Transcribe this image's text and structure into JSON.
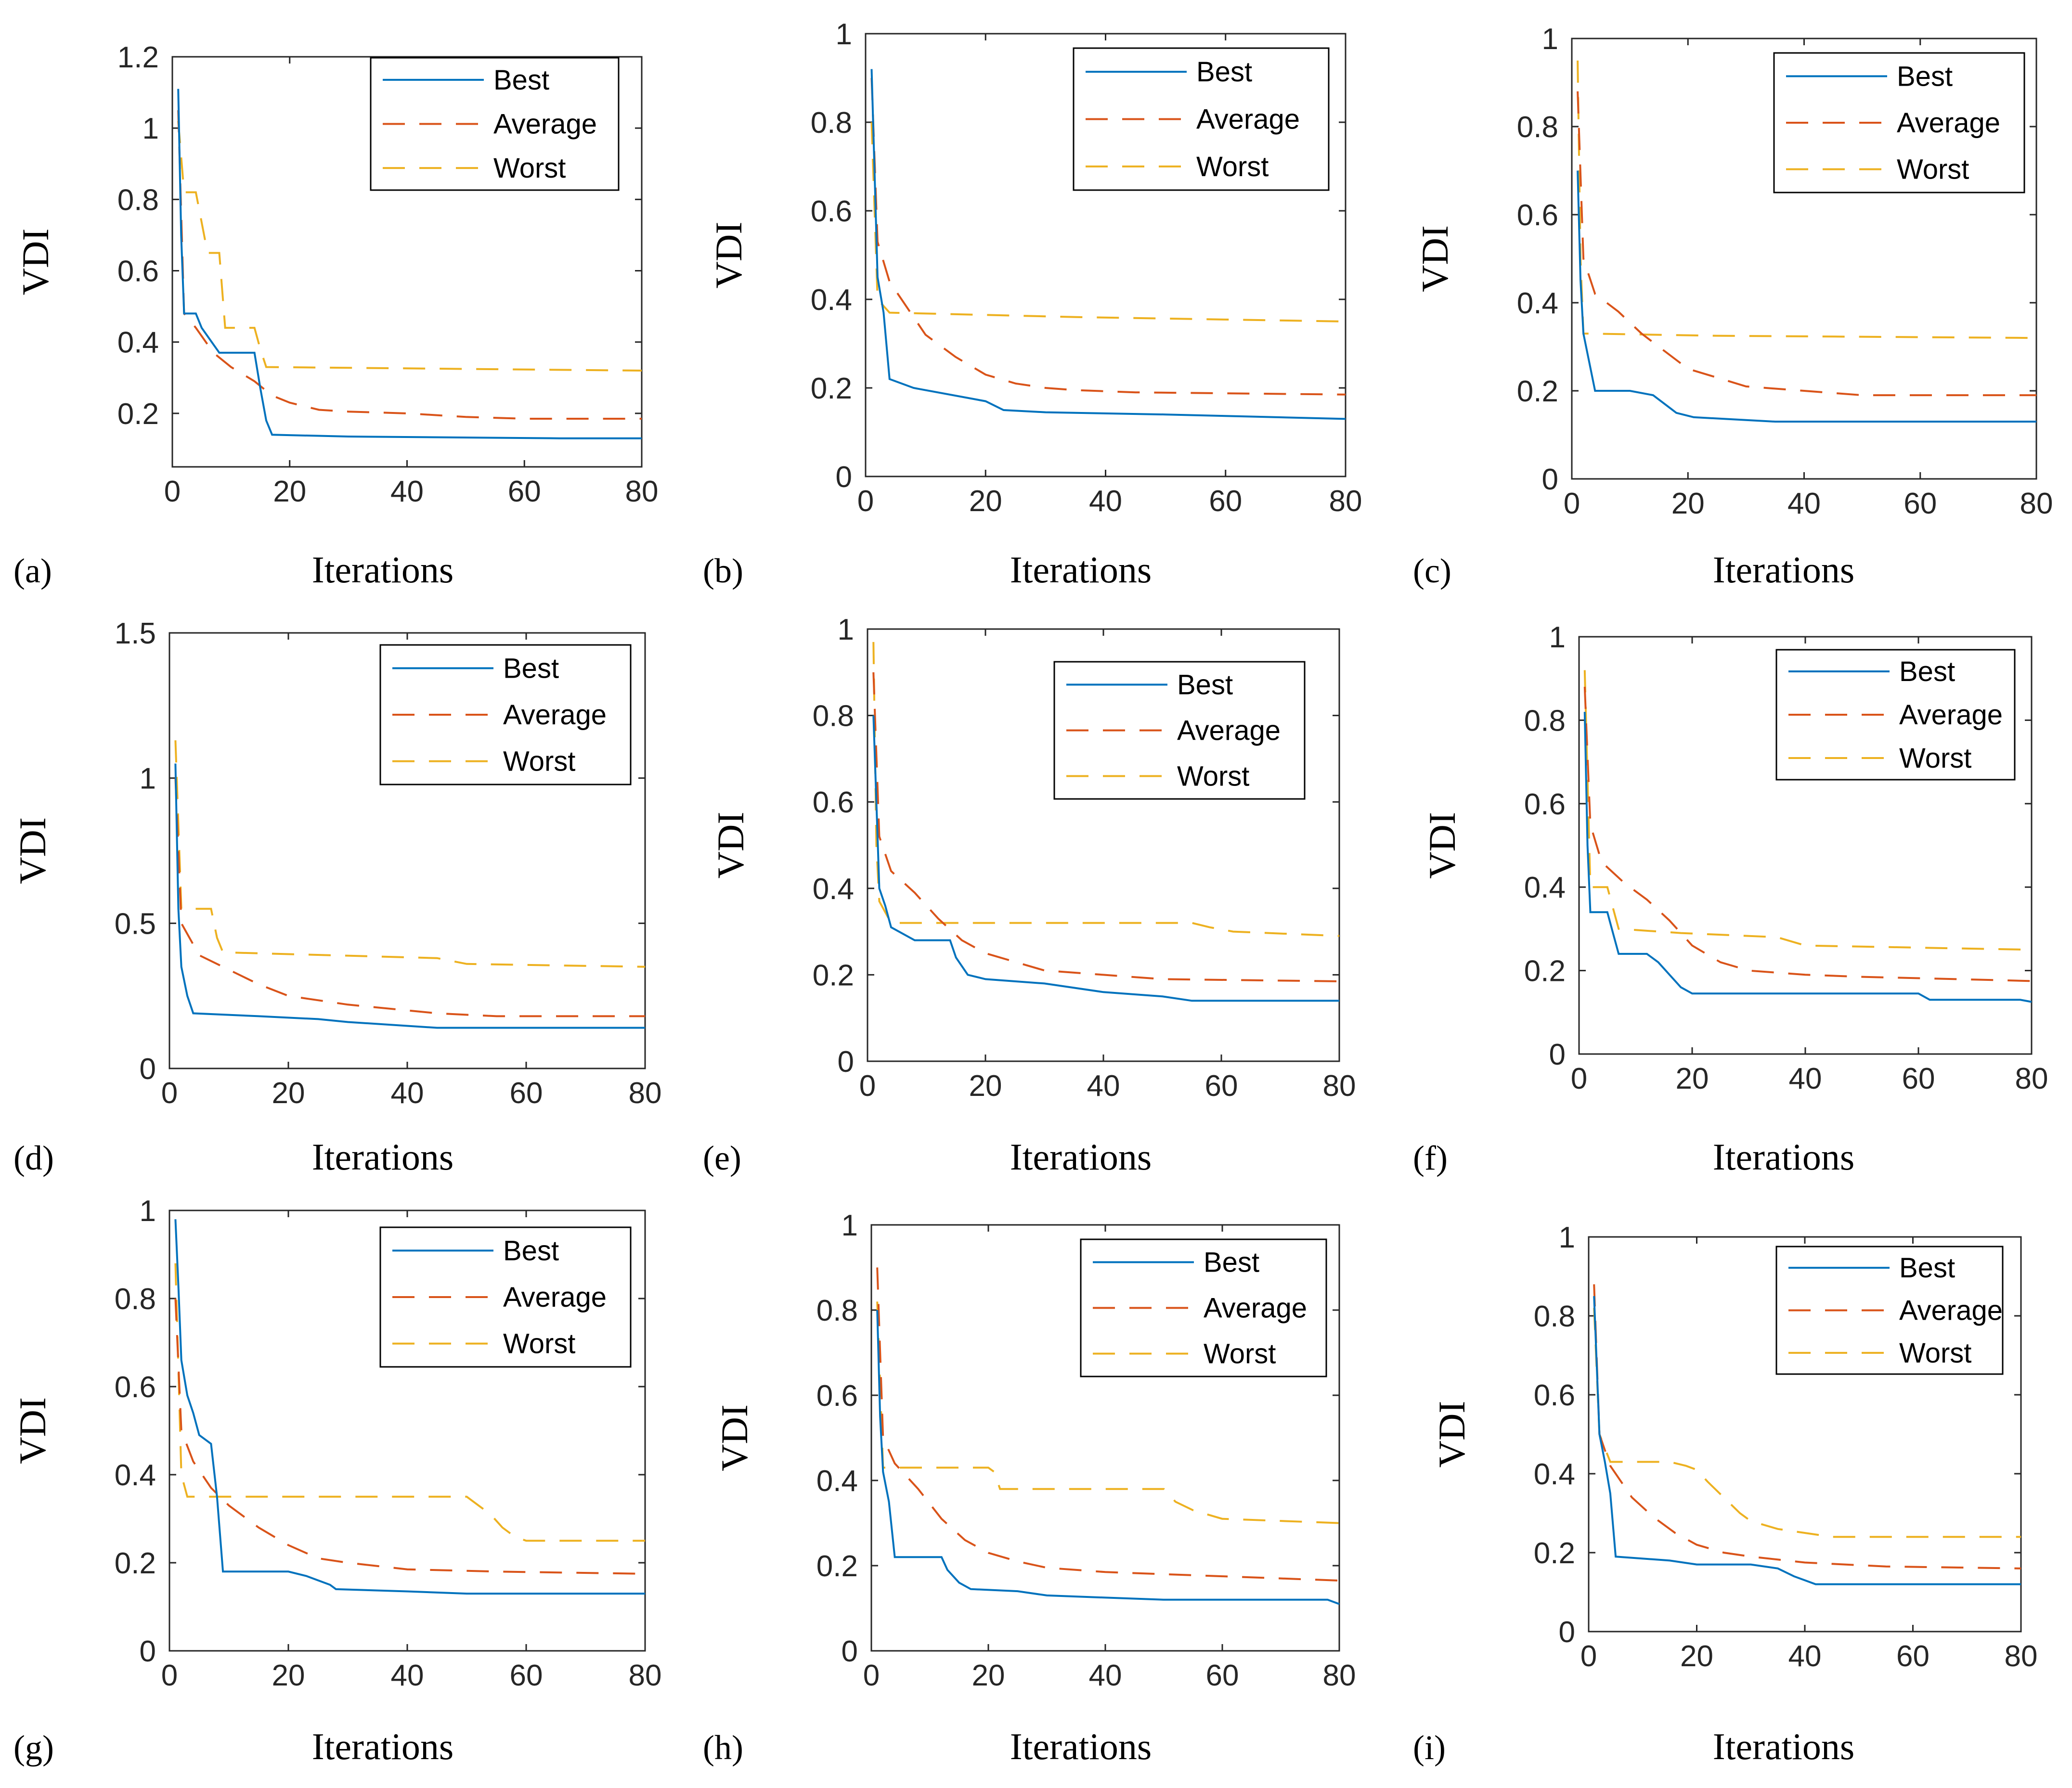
{
  "figure_title": "",
  "colors": {
    "best": "#0072BD",
    "average": "#D95319",
    "worst": "#EDB120",
    "axis": "#262626"
  },
  "chart_data": [
    {
      "panel": "(a)",
      "type": "line",
      "xlabel": "Iterations",
      "ylabel": "VDI",
      "xlim": [
        0,
        80
      ],
      "ylim": [
        0.05,
        1.2
      ],
      "xticks": [
        "0",
        "20",
        "40",
        "60",
        "80"
      ],
      "yticks": [
        "0.2",
        "0.4",
        "0.6",
        "0.8",
        "1",
        "1.2"
      ],
      "ytick_values": [
        0.2,
        0.4,
        0.6,
        0.8,
        1,
        1.2
      ],
      "legend": [
        "Best",
        "Average",
        "Worst"
      ],
      "series": [
        {
          "name": "Best",
          "x": [
            1,
            1.5,
            2,
            4,
            5,
            8,
            14,
            15,
            16,
            17,
            30,
            66,
            80
          ],
          "y": [
            1.11,
            0.7,
            0.48,
            0.48,
            0.44,
            0.37,
            0.37,
            0.27,
            0.18,
            0.14,
            0.135,
            0.13,
            0.13
          ]
        },
        {
          "name": "Average",
          "x": [
            1,
            2,
            4,
            7,
            10,
            14,
            17,
            20,
            25,
            30,
            40,
            50,
            60,
            80
          ],
          "y": [
            1.05,
            0.48,
            0.44,
            0.37,
            0.33,
            0.29,
            0.25,
            0.23,
            0.21,
            0.205,
            0.2,
            0.19,
            0.185,
            0.185
          ]
        },
        {
          "name": "Worst",
          "x": [
            1,
            2,
            4,
            6,
            8,
            9,
            14,
            15,
            16,
            80
          ],
          "y": [
            1.02,
            0.82,
            0.82,
            0.65,
            0.65,
            0.44,
            0.44,
            0.38,
            0.33,
            0.32
          ]
        }
      ]
    },
    {
      "panel": "(b)",
      "type": "line",
      "xlabel": "Iterations",
      "ylabel": "VDI",
      "xlim": [
        0,
        80
      ],
      "ylim": [
        0,
        1
      ],
      "xticks": [
        "0",
        "20",
        "40",
        "60",
        "80"
      ],
      "yticks": [
        "0",
        "0.2",
        "0.4",
        "0.6",
        "0.8",
        "1"
      ],
      "ytick_values": [
        0,
        0.2,
        0.4,
        0.6,
        0.8,
        1
      ],
      "legend": [
        "Best",
        "Average",
        "Worst"
      ],
      "series": [
        {
          "name": "Best",
          "x": [
            1,
            2,
            3,
            4,
            8,
            12,
            20,
            23,
            30,
            50,
            65,
            80
          ],
          "y": [
            0.92,
            0.45,
            0.37,
            0.22,
            0.2,
            0.19,
            0.17,
            0.15,
            0.145,
            0.14,
            0.135,
            0.13
          ]
        },
        {
          "name": "Average",
          "x": [
            1,
            2,
            4,
            7,
            10,
            15,
            20,
            25,
            30,
            35,
            45,
            80
          ],
          "y": [
            0.9,
            0.53,
            0.44,
            0.38,
            0.32,
            0.27,
            0.23,
            0.21,
            0.2,
            0.195,
            0.19,
            0.185
          ]
        },
        {
          "name": "Worst",
          "x": [
            1,
            2,
            4,
            35,
            80
          ],
          "y": [
            0.8,
            0.4,
            0.37,
            0.36,
            0.35
          ]
        }
      ]
    },
    {
      "panel": "(c)",
      "type": "line",
      "xlabel": "Iterations",
      "ylabel": "VDI",
      "xlim": [
        0,
        80
      ],
      "ylim": [
        0,
        1
      ],
      "xticks": [
        "0",
        "20",
        "40",
        "60",
        "80"
      ],
      "yticks": [
        "0",
        "0.2",
        "0.4",
        "0.6",
        "0.8",
        "1"
      ],
      "ytick_values": [
        0,
        0.2,
        0.4,
        0.6,
        0.8,
        1
      ],
      "legend": [
        "Best",
        "Average",
        "Worst"
      ],
      "series": [
        {
          "name": "Best",
          "x": [
            1,
            1.5,
            2,
            4,
            10,
            14,
            17,
            18,
            21,
            35,
            80
          ],
          "y": [
            0.7,
            0.45,
            0.33,
            0.2,
            0.2,
            0.19,
            0.16,
            0.15,
            0.14,
            0.13,
            0.13
          ]
        },
        {
          "name": "Average",
          "x": [
            1,
            2,
            4,
            8,
            12,
            16,
            20,
            25,
            30,
            40,
            50,
            80
          ],
          "y": [
            0.88,
            0.5,
            0.42,
            0.38,
            0.33,
            0.29,
            0.25,
            0.23,
            0.21,
            0.2,
            0.19,
            0.19
          ]
        },
        {
          "name": "Worst",
          "x": [
            1,
            1.5,
            2,
            25,
            80
          ],
          "y": [
            0.95,
            0.5,
            0.33,
            0.325,
            0.32
          ]
        }
      ]
    },
    {
      "panel": "(d)",
      "type": "line",
      "xlabel": "Iterations",
      "ylabel": "VDI",
      "xlim": [
        0,
        80
      ],
      "ylim": [
        0,
        1.5
      ],
      "xticks": [
        "0",
        "20",
        "40",
        "60",
        "80"
      ],
      "yticks": [
        "0",
        "0.5",
        "1",
        "1.5"
      ],
      "ytick_values": [
        0,
        0.5,
        1,
        1.5
      ],
      "legend": [
        "Best",
        "Average",
        "Worst"
      ],
      "series": [
        {
          "name": "Best",
          "x": [
            1,
            1.5,
            2,
            3,
            4,
            15,
            25,
            30,
            45,
            80
          ],
          "y": [
            1.05,
            0.55,
            0.35,
            0.25,
            0.19,
            0.18,
            0.17,
            0.16,
            0.14,
            0.14
          ]
        },
        {
          "name": "Average",
          "x": [
            1,
            2,
            5,
            10,
            15,
            20,
            30,
            40,
            45,
            55,
            80
          ],
          "y": [
            1.0,
            0.5,
            0.39,
            0.34,
            0.29,
            0.25,
            0.22,
            0.2,
            0.19,
            0.18,
            0.18
          ]
        },
        {
          "name": "Worst",
          "x": [
            1,
            2,
            7,
            8,
            9,
            45,
            50,
            80
          ],
          "y": [
            1.13,
            0.55,
            0.55,
            0.45,
            0.4,
            0.38,
            0.36,
            0.35
          ]
        }
      ]
    },
    {
      "panel": "(e)",
      "type": "line",
      "xlabel": "Iterations",
      "ylabel": "VDI",
      "xlim": [
        0,
        80
      ],
      "ylim": [
        0,
        1
      ],
      "xticks": [
        "0",
        "20",
        "40",
        "60",
        "80"
      ],
      "yticks": [
        "0",
        "0.2",
        "0.4",
        "0.6",
        "0.8",
        "1"
      ],
      "ytick_values": [
        0,
        0.2,
        0.4,
        0.6,
        0.8,
        1
      ],
      "legend": [
        "Best",
        "Average",
        "Worst"
      ],
      "series": [
        {
          "name": "Best",
          "x": [
            1,
            1.5,
            2,
            3,
            4,
            8,
            14,
            15,
            17,
            20,
            30,
            40,
            50,
            55,
            80
          ],
          "y": [
            0.8,
            0.6,
            0.4,
            0.36,
            0.31,
            0.28,
            0.28,
            0.24,
            0.2,
            0.19,
            0.18,
            0.16,
            0.15,
            0.14,
            0.14
          ]
        },
        {
          "name": "Average",
          "x": [
            1,
            2,
            4,
            8,
            12,
            16,
            20,
            25,
            30,
            40,
            50,
            80
          ],
          "y": [
            0.9,
            0.52,
            0.44,
            0.39,
            0.33,
            0.28,
            0.25,
            0.23,
            0.21,
            0.2,
            0.19,
            0.185
          ]
        },
        {
          "name": "Worst",
          "x": [
            1,
            1.5,
            2,
            4,
            55,
            58,
            62,
            80
          ],
          "y": [
            0.97,
            0.5,
            0.37,
            0.32,
            0.32,
            0.31,
            0.3,
            0.29
          ]
        }
      ]
    },
    {
      "panel": "(f)",
      "type": "line",
      "xlabel": "Iterations",
      "ylabel": "VDI",
      "xlim": [
        0,
        80
      ],
      "ylim": [
        0,
        1
      ],
      "xticks": [
        "0",
        "20",
        "40",
        "60",
        "80"
      ],
      "yticks": [
        "0",
        "0.2",
        "0.4",
        "0.6",
        "0.8",
        "1"
      ],
      "ytick_values": [
        0,
        0.2,
        0.4,
        0.6,
        0.8,
        1
      ],
      "legend": [
        "Best",
        "Average",
        "Worst"
      ],
      "series": [
        {
          "name": "Best",
          "x": [
            1,
            1.5,
            2,
            5,
            6,
            7,
            12,
            14,
            16,
            18,
            20,
            60,
            62,
            78,
            80
          ],
          "y": [
            0.82,
            0.5,
            0.34,
            0.34,
            0.29,
            0.24,
            0.24,
            0.22,
            0.19,
            0.16,
            0.145,
            0.145,
            0.13,
            0.13,
            0.125
          ]
        },
        {
          "name": "Average",
          "x": [
            1,
            2,
            4,
            8,
            12,
            16,
            20,
            25,
            30,
            40,
            50,
            65,
            80
          ],
          "y": [
            0.88,
            0.55,
            0.46,
            0.41,
            0.37,
            0.32,
            0.26,
            0.22,
            0.2,
            0.19,
            0.185,
            0.18,
            0.175
          ]
        },
        {
          "name": "Worst",
          "x": [
            1,
            2,
            5,
            6,
            7,
            18,
            35,
            40,
            80
          ],
          "y": [
            0.92,
            0.4,
            0.4,
            0.35,
            0.3,
            0.29,
            0.28,
            0.26,
            0.25
          ]
        }
      ]
    },
    {
      "panel": "(g)",
      "type": "line",
      "xlabel": "Iterations",
      "ylabel": "VDI",
      "xlim": [
        0,
        80
      ],
      "ylim": [
        0,
        1
      ],
      "xticks": [
        "0",
        "20",
        "40",
        "60",
        "80"
      ],
      "yticks": [
        "0",
        "0.2",
        "0.4",
        "0.6",
        "0.8",
        "1"
      ],
      "ytick_values": [
        0,
        0.2,
        0.4,
        0.6,
        0.8,
        1
      ],
      "legend": [
        "Best",
        "Average",
        "Worst"
      ],
      "series": [
        {
          "name": "Best",
          "x": [
            1,
            1.5,
            2,
            3,
            4,
            5,
            7,
            8,
            9,
            20,
            23,
            25,
            27,
            28,
            40,
            50,
            80
          ],
          "y": [
            0.98,
            0.83,
            0.66,
            0.58,
            0.54,
            0.49,
            0.47,
            0.35,
            0.18,
            0.18,
            0.17,
            0.16,
            0.15,
            0.14,
            0.135,
            0.13,
            0.13
          ]
        },
        {
          "name": "Average",
          "x": [
            1,
            2,
            4,
            7,
            10,
            15,
            20,
            25,
            30,
            40,
            55,
            80
          ],
          "y": [
            0.8,
            0.5,
            0.43,
            0.37,
            0.33,
            0.28,
            0.24,
            0.21,
            0.2,
            0.185,
            0.18,
            0.175
          ]
        },
        {
          "name": "Worst",
          "x": [
            1,
            2,
            3,
            50,
            52,
            54,
            56,
            58,
            60,
            80
          ],
          "y": [
            0.88,
            0.4,
            0.35,
            0.35,
            0.33,
            0.31,
            0.28,
            0.26,
            0.25,
            0.25
          ]
        }
      ]
    },
    {
      "panel": "(h)",
      "type": "line",
      "xlabel": "Iterations",
      "ylabel": "VDI",
      "xlim": [
        0,
        80
      ],
      "ylim": [
        0,
        1
      ],
      "xticks": [
        "0",
        "20",
        "40",
        "60",
        "80"
      ],
      "yticks": [
        "0",
        "0.2",
        "0.4",
        "0.6",
        "0.8",
        "1"
      ],
      "ytick_values": [
        0,
        0.2,
        0.4,
        0.6,
        0.8,
        1
      ],
      "legend": [
        "Best",
        "Average",
        "Worst"
      ],
      "series": [
        {
          "name": "Best",
          "x": [
            1,
            1.5,
            2,
            3,
            4,
            12,
            13,
            15,
            17,
            25,
            30,
            40,
            50,
            78,
            80
          ],
          "y": [
            0.8,
            0.55,
            0.42,
            0.35,
            0.22,
            0.22,
            0.19,
            0.16,
            0.145,
            0.14,
            0.13,
            0.125,
            0.12,
            0.12,
            0.11
          ]
        },
        {
          "name": "Average",
          "x": [
            1,
            2,
            4,
            8,
            12,
            16,
            20,
            25,
            30,
            40,
            60,
            80
          ],
          "y": [
            0.9,
            0.5,
            0.44,
            0.38,
            0.31,
            0.26,
            0.23,
            0.21,
            0.195,
            0.185,
            0.175,
            0.165
          ]
        },
        {
          "name": "Worst",
          "x": [
            1,
            2,
            20,
            21,
            22,
            50,
            52,
            55,
            60,
            80
          ],
          "y": [
            0.82,
            0.43,
            0.43,
            0.42,
            0.38,
            0.38,
            0.35,
            0.33,
            0.31,
            0.3
          ]
        }
      ]
    },
    {
      "panel": "(i)",
      "type": "line",
      "xlabel": "Iterations",
      "ylabel": "VDI",
      "xlim": [
        0,
        80
      ],
      "ylim": [
        0,
        1
      ],
      "xticks": [
        "0",
        "20",
        "40",
        "60",
        "80"
      ],
      "yticks": [
        "0",
        "0.2",
        "0.4",
        "0.6",
        "0.8",
        "1"
      ],
      "ytick_values": [
        0,
        0.2,
        0.4,
        0.6,
        0.8,
        1
      ],
      "legend": [
        "Best",
        "Average",
        "Worst"
      ],
      "series": [
        {
          "name": "Best",
          "x": [
            1,
            2,
            3,
            4,
            5,
            15,
            20,
            30,
            35,
            38,
            40,
            42,
            80
          ],
          "y": [
            0.85,
            0.5,
            0.43,
            0.35,
            0.19,
            0.18,
            0.17,
            0.17,
            0.16,
            0.14,
            0.13,
            0.12,
            0.12
          ]
        },
        {
          "name": "Average",
          "x": [
            1,
            2,
            4,
            8,
            12,
            16,
            20,
            25,
            30,
            40,
            55,
            80
          ],
          "y": [
            0.88,
            0.5,
            0.42,
            0.34,
            0.29,
            0.25,
            0.22,
            0.2,
            0.19,
            0.175,
            0.165,
            0.16
          ]
        },
        {
          "name": "Worst",
          "x": [
            1,
            2,
            4,
            15,
            18,
            20,
            22,
            25,
            28,
            30,
            35,
            40,
            45,
            80
          ],
          "y": [
            0.82,
            0.5,
            0.43,
            0.43,
            0.42,
            0.41,
            0.38,
            0.34,
            0.3,
            0.28,
            0.26,
            0.25,
            0.24,
            0.24
          ]
        }
      ]
    }
  ]
}
